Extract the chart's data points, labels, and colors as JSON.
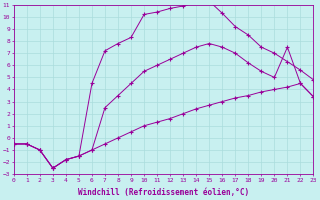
{
  "xlabel": "Windchill (Refroidissement éolien,°C)",
  "bg_color": "#c8f0f0",
  "line_color": "#990099",
  "grid_color": "#aadddd",
  "xmin": 0,
  "xmax": 23,
  "ymin": -3,
  "ymax": 11,
  "line1_x": [
    0,
    1,
    2,
    3,
    4,
    5,
    6,
    7,
    8,
    9,
    10,
    11,
    12,
    13,
    14,
    15,
    16,
    17,
    18,
    19,
    20,
    21,
    22,
    23
  ],
  "line1_y": [
    -0.5,
    -0.5,
    -1.0,
    -2.5,
    -1.8,
    -1.5,
    -1.0,
    -0.5,
    0.0,
    0.5,
    1.0,
    1.3,
    1.6,
    2.0,
    2.4,
    2.7,
    3.0,
    3.3,
    3.5,
    3.8,
    4.0,
    4.2,
    4.5,
    3.4
  ],
  "line2_x": [
    0,
    1,
    2,
    3,
    4,
    5,
    6,
    7,
    8,
    9,
    10,
    11,
    12,
    13,
    14,
    15,
    16,
    17,
    18,
    19,
    20,
    21,
    22,
    23
  ],
  "line2_y": [
    -0.5,
    -0.5,
    -1.0,
    -2.5,
    -1.8,
    -1.5,
    4.5,
    7.2,
    7.8,
    8.3,
    10.2,
    10.4,
    10.7,
    10.9,
    11.2,
    11.3,
    10.3,
    9.2,
    8.5,
    7.5,
    7.0,
    6.3,
    5.6,
    4.8
  ],
  "line3_x": [
    0,
    1,
    2,
    3,
    4,
    5,
    6,
    7,
    8,
    9,
    10,
    11,
    12,
    13,
    14,
    15,
    16,
    17,
    18,
    19,
    20,
    21,
    22,
    23
  ],
  "line3_y": [
    -0.5,
    -0.5,
    -1.0,
    -2.5,
    -1.8,
    -1.5,
    -1.0,
    2.5,
    3.5,
    4.5,
    5.5,
    6.0,
    6.5,
    7.0,
    7.5,
    7.8,
    7.5,
    7.0,
    6.2,
    5.5,
    5.0,
    7.5,
    4.5,
    3.4
  ]
}
